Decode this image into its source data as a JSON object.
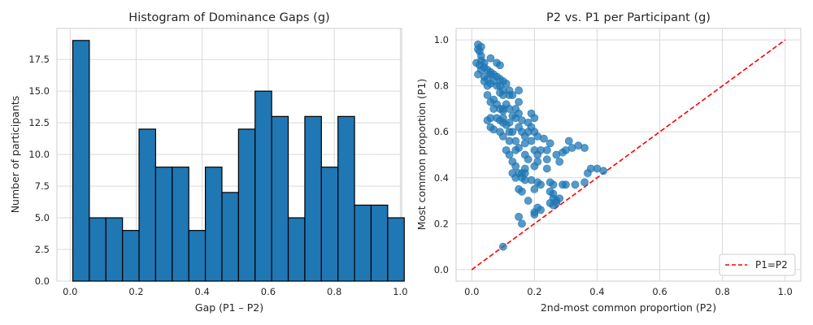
{
  "chart_data": [
    {
      "type": "bar",
      "title": "Histogram of Dominance Gaps (g)",
      "xlabel": "Gap (P1 – P2)",
      "ylabel": "Number of participants",
      "xlim": [
        -0.04,
        1.004
      ],
      "ylim": [
        0,
        19.95
      ],
      "x_ticks": [
        0.0,
        0.2,
        0.4,
        0.6,
        0.8,
        1.0
      ],
      "x_tick_labels": [
        "0.0",
        "0.2",
        "0.4",
        "0.6",
        "0.8",
        "1.0"
      ],
      "y_ticks": [
        0,
        2.5,
        5,
        7.5,
        10,
        12.5,
        15,
        17.5
      ],
      "y_tick_labels": [
        "0.0",
        "2.5",
        "5.0",
        "7.5",
        "10.0",
        "12.5",
        "15.0",
        "17.5"
      ],
      "grid": true,
      "bin_start": 0.008,
      "bin_width": 0.0502,
      "values": [
        19,
        5,
        5,
        4,
        12,
        9,
        9,
        4,
        9,
        7,
        12,
        15,
        13,
        5,
        13,
        9,
        13,
        6,
        6,
        5
      ],
      "bar_color": "#1f77b4",
      "edge_color": "#000000"
    },
    {
      "type": "scatter",
      "title": "P2 vs. P1 per Participant (g)",
      "xlabel": "2nd-most common proportion (P2)",
      "ylabel": "Most common proportion (P1)",
      "xlim": [
        -0.05,
        1.05
      ],
      "ylim": [
        -0.05,
        1.05
      ],
      "x_ticks": [
        0.0,
        0.2,
        0.4,
        0.6,
        0.8,
        1.0
      ],
      "x_tick_labels": [
        "0.0",
        "0.2",
        "0.4",
        "0.6",
        "0.8",
        "1.0"
      ],
      "y_ticks": [
        0.0,
        0.2,
        0.4,
        0.6,
        0.8,
        1.0
      ],
      "y_tick_labels": [
        "0.0",
        "0.2",
        "0.4",
        "0.6",
        "0.8",
        "1.0"
      ],
      "grid": true,
      "point_color": "#1f77b4",
      "points": [
        [
          0.02,
          0.98
        ],
        [
          0.03,
          0.97
        ],
        [
          0.02,
          0.96
        ],
        [
          0.025,
          0.95
        ],
        [
          0.03,
          0.93
        ],
        [
          0.015,
          0.9
        ],
        [
          0.03,
          0.91
        ],
        [
          0.04,
          0.9
        ],
        [
          0.06,
          0.92
        ],
        [
          0.08,
          0.9
        ],
        [
          0.09,
          0.89
        ],
        [
          0.025,
          0.89
        ],
        [
          0.04,
          0.88
        ],
        [
          0.05,
          0.87
        ],
        [
          0.06,
          0.86
        ],
        [
          0.03,
          0.87
        ],
        [
          0.02,
          0.85
        ],
        [
          0.04,
          0.84
        ],
        [
          0.05,
          0.83
        ],
        [
          0.06,
          0.85
        ],
        [
          0.07,
          0.85
        ],
        [
          0.08,
          0.84
        ],
        [
          0.07,
          0.82
        ],
        [
          0.09,
          0.83
        ],
        [
          0.1,
          0.82
        ],
        [
          0.04,
          0.82
        ],
        [
          0.06,
          0.81
        ],
        [
          0.08,
          0.8
        ],
        [
          0.09,
          0.8
        ],
        [
          0.11,
          0.81
        ],
        [
          0.1,
          0.78
        ],
        [
          0.12,
          0.78
        ],
        [
          0.13,
          0.76
        ],
        [
          0.09,
          0.77
        ],
        [
          0.1,
          0.76
        ],
        [
          0.12,
          0.76
        ],
        [
          0.15,
          0.78
        ],
        [
          0.05,
          0.8
        ],
        [
          0.15,
          0.73
        ],
        [
          0.11,
          0.72
        ],
        [
          0.12,
          0.7
        ],
        [
          0.14,
          0.7
        ],
        [
          0.1,
          0.7
        ],
        [
          0.07,
          0.74
        ],
        [
          0.08,
          0.72
        ],
        [
          0.09,
          0.7
        ],
        [
          0.1,
          0.69
        ],
        [
          0.05,
          0.76
        ],
        [
          0.06,
          0.73
        ],
        [
          0.07,
          0.7
        ],
        [
          0.06,
          0.66
        ],
        [
          0.05,
          0.65
        ],
        [
          0.08,
          0.66
        ],
        [
          0.1,
          0.66
        ],
        [
          0.13,
          0.67
        ],
        [
          0.09,
          0.65
        ],
        [
          0.1,
          0.64
        ],
        [
          0.11,
          0.63
        ],
        [
          0.12,
          0.64
        ],
        [
          0.14,
          0.66
        ],
        [
          0.15,
          0.68
        ],
        [
          0.16,
          0.65
        ],
        [
          0.19,
          0.68
        ],
        [
          0.18,
          0.64
        ],
        [
          0.2,
          0.66
        ],
        [
          0.06,
          0.62
        ],
        [
          0.07,
          0.61
        ],
        [
          0.09,
          0.6
        ],
        [
          0.1,
          0.58
        ],
        [
          0.12,
          0.6
        ],
        [
          0.13,
          0.6
        ],
        [
          0.15,
          0.62
        ],
        [
          0.16,
          0.6
        ],
        [
          0.17,
          0.58
        ],
        [
          0.19,
          0.62
        ],
        [
          0.18,
          0.6
        ],
        [
          0.2,
          0.6
        ],
        [
          0.21,
          0.58
        ],
        [
          0.23,
          0.57
        ],
        [
          0.25,
          0.55
        ],
        [
          0.12,
          0.56
        ],
        [
          0.14,
          0.56
        ],
        [
          0.15,
          0.53
        ],
        [
          0.17,
          0.55
        ],
        [
          0.19,
          0.56
        ],
        [
          0.2,
          0.52
        ],
        [
          0.21,
          0.5
        ],
        [
          0.22,
          0.52
        ],
        [
          0.24,
          0.52
        ],
        [
          0.27,
          0.5
        ],
        [
          0.29,
          0.51
        ],
        [
          0.3,
          0.52
        ],
        [
          0.31,
          0.56
        ],
        [
          0.32,
          0.53
        ],
        [
          0.34,
          0.54
        ],
        [
          0.36,
          0.53
        ],
        [
          0.11,
          0.52
        ],
        [
          0.12,
          0.5
        ],
        [
          0.14,
          0.52
        ],
        [
          0.17,
          0.5
        ],
        [
          0.18,
          0.48
        ],
        [
          0.21,
          0.47
        ],
        [
          0.24,
          0.48
        ],
        [
          0.28,
          0.47
        ],
        [
          0.13,
          0.47
        ],
        [
          0.14,
          0.45
        ],
        [
          0.17,
          0.44
        ],
        [
          0.2,
          0.45
        ],
        [
          0.24,
          0.44
        ],
        [
          0.13,
          0.42
        ],
        [
          0.15,
          0.42
        ],
        [
          0.16,
          0.42
        ],
        [
          0.17,
          0.42
        ],
        [
          0.14,
          0.4
        ],
        [
          0.16,
          0.4
        ],
        [
          0.17,
          0.39
        ],
        [
          0.19,
          0.39
        ],
        [
          0.21,
          0.38
        ],
        [
          0.22,
          0.37
        ],
        [
          0.25,
          0.38
        ],
        [
          0.26,
          0.37
        ],
        [
          0.29,
          0.37
        ],
        [
          0.3,
          0.37
        ],
        [
          0.33,
          0.37
        ],
        [
          0.36,
          0.38
        ],
        [
          0.37,
          0.42
        ],
        [
          0.38,
          0.44
        ],
        [
          0.4,
          0.44
        ],
        [
          0.42,
          0.43
        ],
        [
          0.15,
          0.35
        ],
        [
          0.16,
          0.34
        ],
        [
          0.2,
          0.35
        ],
        [
          0.25,
          0.34
        ],
        [
          0.26,
          0.33
        ],
        [
          0.26,
          0.31
        ],
        [
          0.27,
          0.3
        ],
        [
          0.28,
          0.31
        ],
        [
          0.25,
          0.29
        ],
        [
          0.26,
          0.28
        ],
        [
          0.27,
          0.29
        ],
        [
          0.18,
          0.3
        ],
        [
          0.21,
          0.27
        ],
        [
          0.22,
          0.26
        ],
        [
          0.2,
          0.25
        ],
        [
          0.2,
          0.24
        ],
        [
          0.15,
          0.23
        ],
        [
          0.16,
          0.2
        ],
        [
          0.1,
          0.1
        ]
      ],
      "reference_line": {
        "label": "P1=P2",
        "from": [
          0,
          0
        ],
        "to": [
          1,
          1
        ],
        "color": "#ff0000",
        "dash": "dashed"
      },
      "legend": {
        "placement": "lower-right",
        "entries": [
          "P1=P2"
        ]
      }
    }
  ]
}
